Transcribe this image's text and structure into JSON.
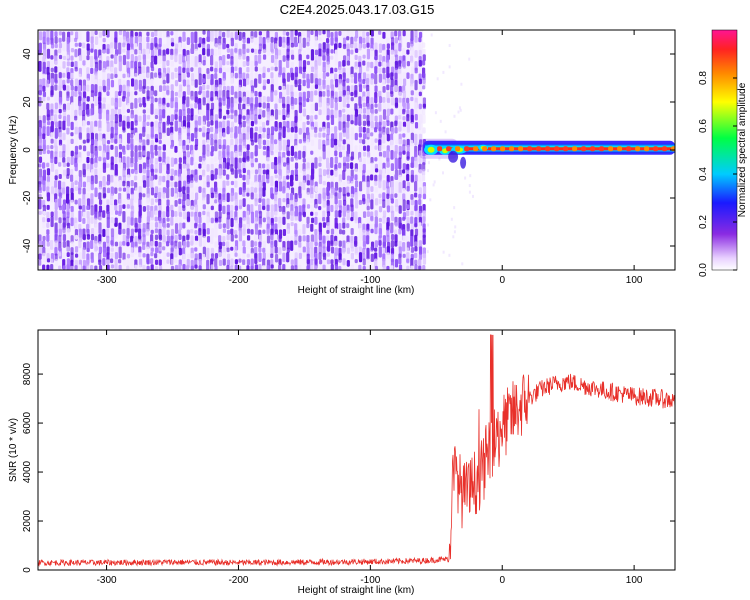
{
  "title": "C2E4.2025.043.17.03.G15",
  "colors": {
    "spectrogram_noise": "#6a1fe6",
    "snr_line": "#e8302a"
  },
  "colorbar": {
    "label": "Normalized spectral amplitude",
    "ticks": [
      "0.0",
      "0.2",
      "0.4",
      "0.6",
      "0.8"
    ]
  },
  "chart_data": [
    {
      "type": "heatmap",
      "title": "C2E4.2025.043.17.03.G15",
      "xlabel": "Height of straight line (km)",
      "ylabel": "Frequency (Hz)",
      "xlim": [
        -352,
        131
      ],
      "ylim": [
        -50,
        50
      ],
      "xticks": [
        -300,
        -200,
        -100,
        0,
        100
      ],
      "yticks": [
        -40,
        -20,
        0,
        20,
        40
      ],
      "colorbar": {
        "label": "Normalized spectral amplitude",
        "range": [
          0,
          1
        ],
        "ticks": [
          0.0,
          0.2,
          0.4,
          0.6,
          0.8
        ]
      },
      "features": {
        "noise_region_x": [
          -352,
          -60
        ],
        "noise_amplitude": 0.1,
        "signal_line": {
          "frequency": 0.5,
          "x_start": -60,
          "x_end": 131,
          "peak_amplitude": 0.9
        }
      }
    },
    {
      "type": "line",
      "xlabel": "Height of straight line (km)",
      "ylabel": "SNR (10 * v/v)",
      "xlim": [
        -352,
        131
      ],
      "ylim": [
        0,
        9800
      ],
      "xticks": [
        -300,
        -200,
        -100,
        0,
        100
      ],
      "yticks": [
        0,
        2000,
        4000,
        6000,
        8000
      ],
      "series": [
        {
          "x": [
            -352,
            -300,
            -250,
            -200,
            -150,
            -100,
            -60,
            -40,
            -38,
            -35,
            -30,
            -25,
            -20,
            -15,
            -10,
            -5,
            0,
            10,
            20,
            30,
            40,
            50,
            60,
            80,
            100,
            120,
            131
          ],
          "values": [
            300,
            300,
            320,
            300,
            320,
            340,
            380,
            450,
            3500,
            4000,
            3000,
            3200,
            3600,
            4000,
            5000,
            5200,
            5800,
            6500,
            7000,
            7400,
            7600,
            7700,
            7550,
            7300,
            7100,
            7000,
            6900
          ]
        }
      ]
    }
  ]
}
